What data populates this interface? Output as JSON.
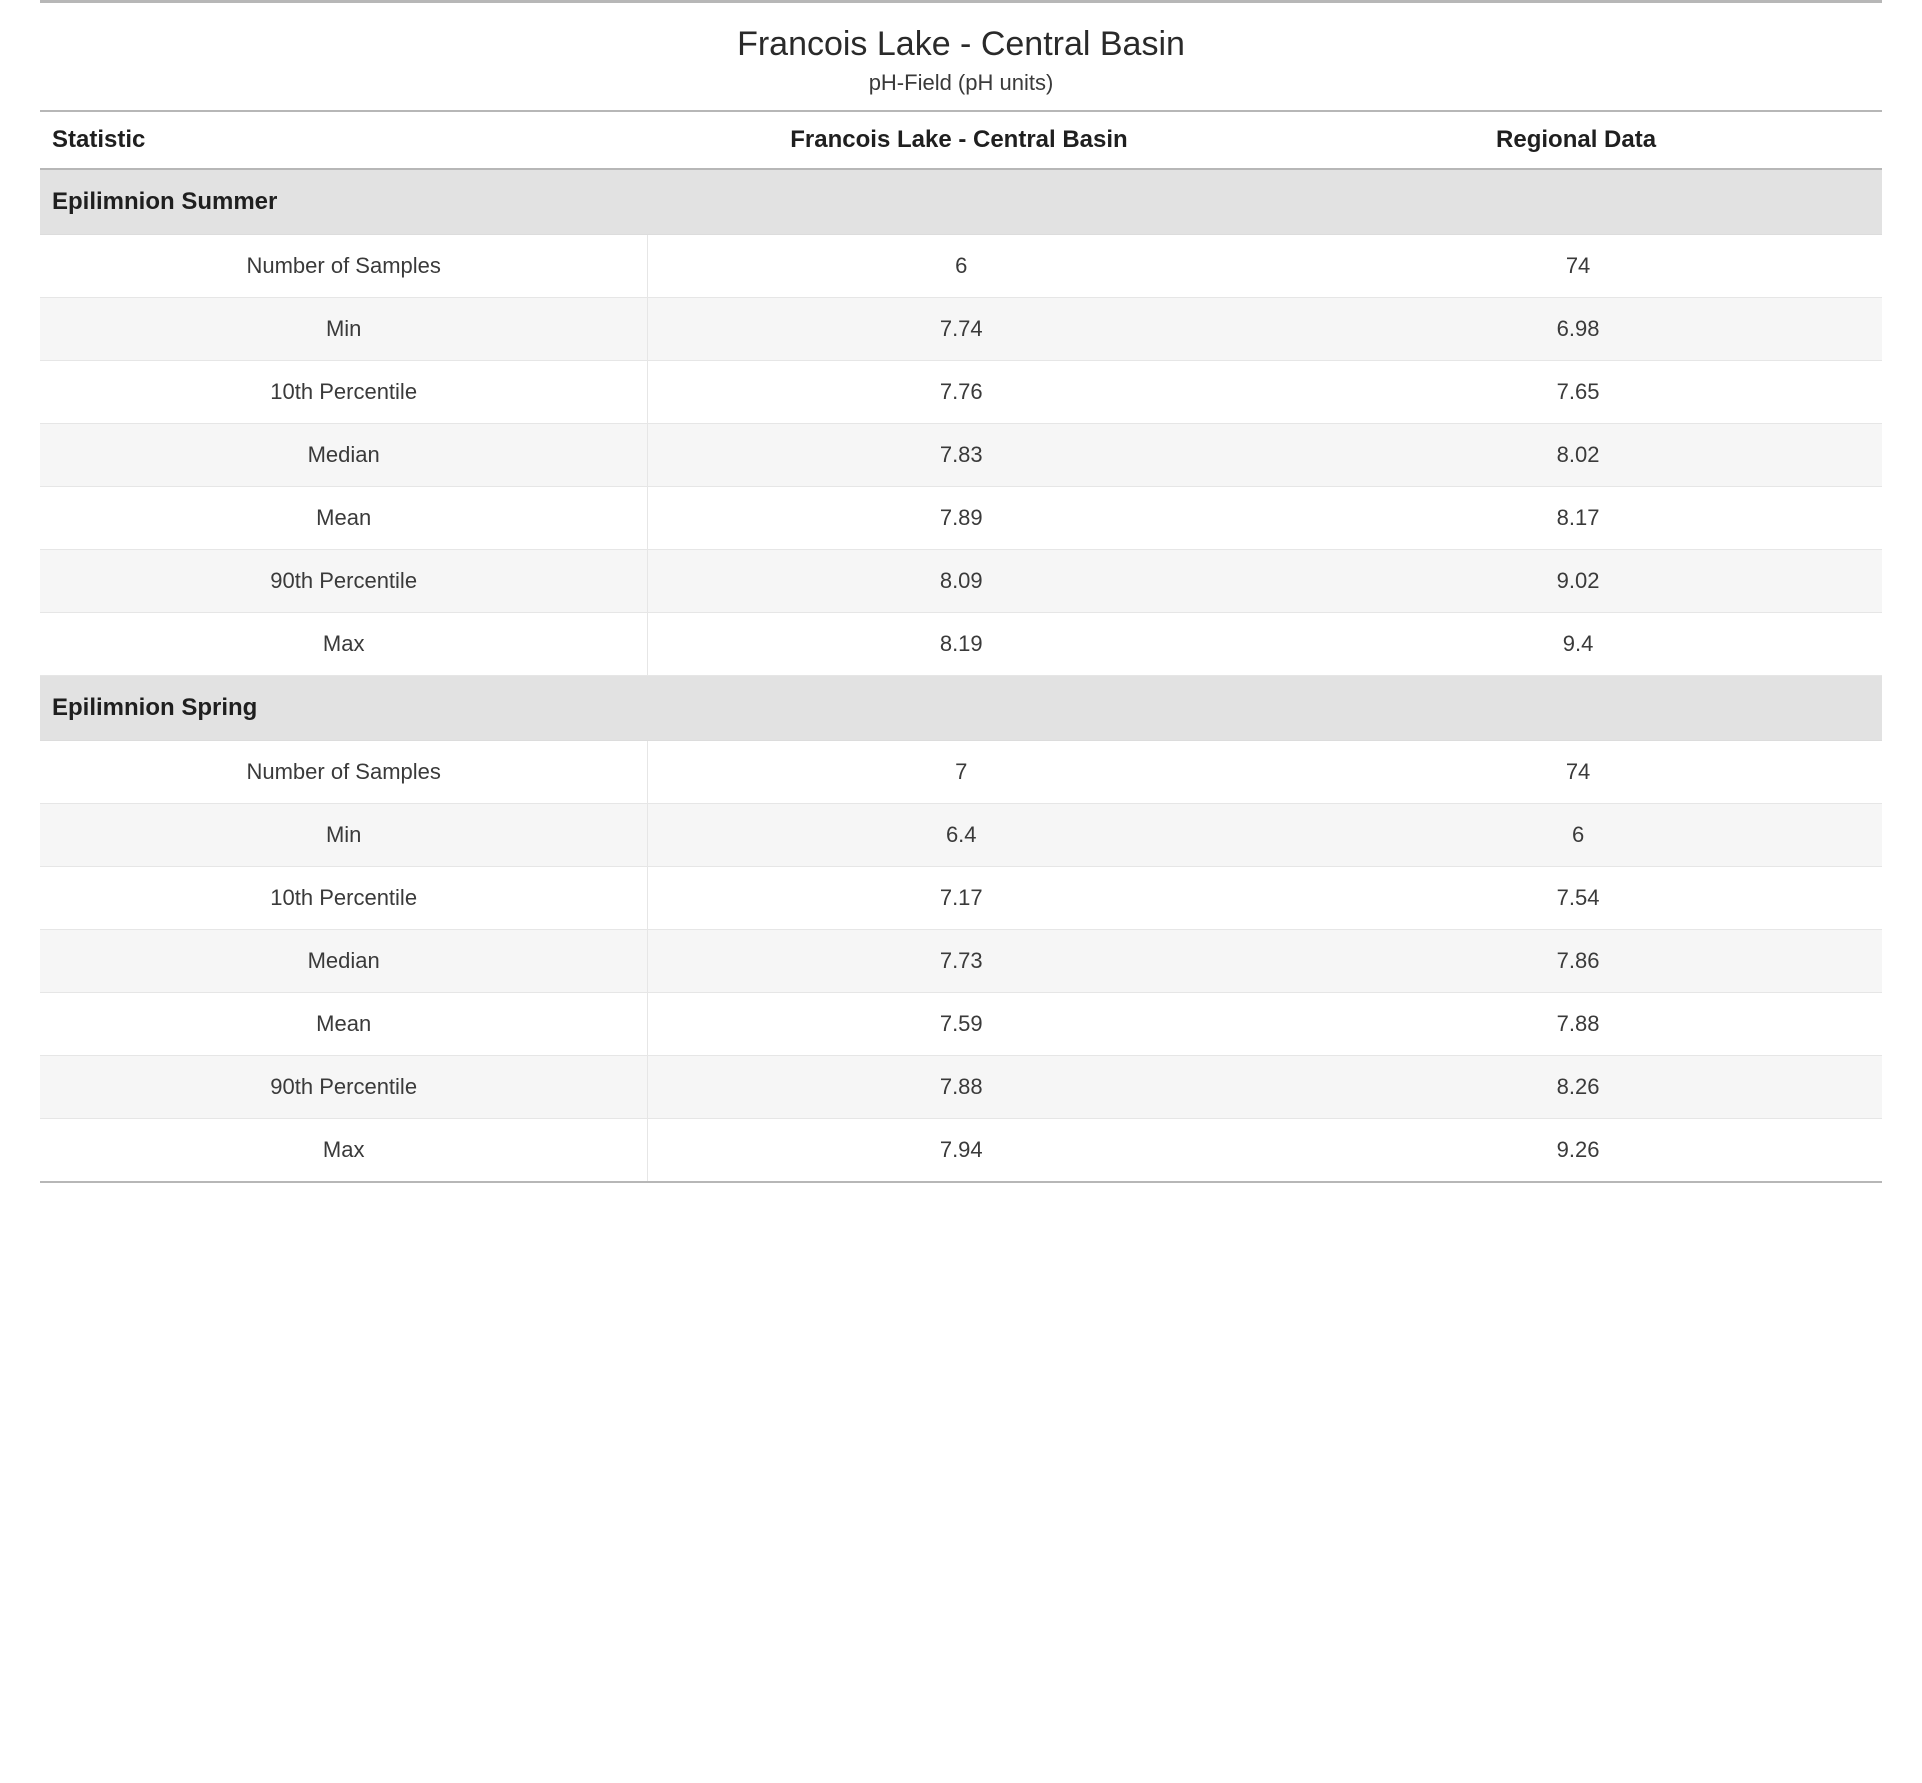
{
  "header": {
    "title": "Francois Lake - Central Basin",
    "subtitle": "pH-Field (pH units)"
  },
  "table": {
    "columns": {
      "stat": "Statistic",
      "site": "Francois Lake - Central Basin",
      "region": "Regional Data"
    },
    "sections": [
      {
        "title": "Epilimnion Summer",
        "rows": [
          {
            "stat": "Number of Samples",
            "site": "6",
            "region": "74"
          },
          {
            "stat": "Min",
            "site": "7.74",
            "region": "6.98"
          },
          {
            "stat": "10th Percentile",
            "site": "7.76",
            "region": "7.65"
          },
          {
            "stat": "Median",
            "site": "7.83",
            "region": "8.02"
          },
          {
            "stat": "Mean",
            "site": "7.89",
            "region": "8.17"
          },
          {
            "stat": "90th Percentile",
            "site": "8.09",
            "region": "9.02"
          },
          {
            "stat": "Max",
            "site": "8.19",
            "region": "9.4"
          }
        ]
      },
      {
        "title": "Epilimnion Spring",
        "rows": [
          {
            "stat": "Number of Samples",
            "site": "7",
            "region": "74"
          },
          {
            "stat": "Min",
            "site": "6.4",
            "region": "6"
          },
          {
            "stat": "10th Percentile",
            "site": "7.17",
            "region": "7.54"
          },
          {
            "stat": "Median",
            "site": "7.73",
            "region": "7.86"
          },
          {
            "stat": "Mean",
            "site": "7.59",
            "region": "7.88"
          },
          {
            "stat": "90th Percentile",
            "site": "7.88",
            "region": "8.26"
          },
          {
            "stat": "Max",
            "site": "7.94",
            "region": "9.26"
          }
        ]
      }
    ]
  },
  "style": {
    "type": "table",
    "background_color": "#ffffff",
    "row_alt_color": "#f6f6f6",
    "section_bg_color": "#e2e2e2",
    "border_color_strong": "#b7b7b7",
    "border_color_light": "#e6e6e6",
    "text_color": "#2e2e2e",
    "title_fontsize": 34,
    "subtitle_fontsize": 22,
    "header_fontsize": 24,
    "cell_fontsize": 22,
    "font_family": "Segoe UI"
  }
}
